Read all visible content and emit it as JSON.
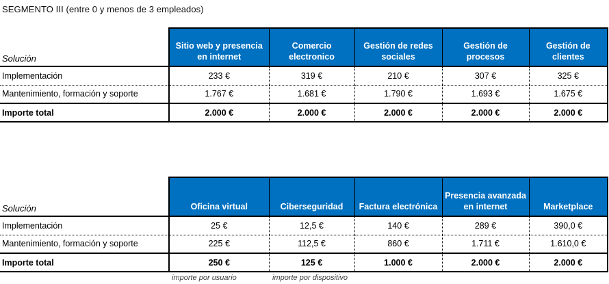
{
  "page": {
    "title": "SEGMENTO III (entre 0 y menos de 3 empleados)"
  },
  "colors": {
    "header_bg": "#0070C0",
    "header_text": "#FFFFFF"
  },
  "tables": [
    {
      "label_header": "Solución",
      "columns": [
        "Sitio web y presencia en internet",
        "Comercio electronico",
        "Gestión de redes sociales",
        "Gestión de procesos",
        "Gestión de clientes"
      ],
      "rows": [
        {
          "label": "Implementación",
          "values": [
            "233 €",
            "319 €",
            "210 €",
            "307 €",
            "325 €"
          ]
        },
        {
          "label": "Mantenimiento, formación y soporte",
          "values": [
            "1.767 €",
            "1.681 €",
            "1.790 €",
            "1.693 €",
            "1.675 €"
          ]
        },
        {
          "label": "Importe total",
          "values": [
            "2.000 €",
            "2.000 €",
            "2.000 €",
            "2.000 €",
            "2.000 €"
          ]
        }
      ],
      "footnotes": []
    },
    {
      "label_header": "Solución",
      "columns": [
        "Oficina virtual",
        "Ciberseguridad",
        "Factura electrónica",
        "Presencia avanzada en internet",
        "Marketplace"
      ],
      "rows": [
        {
          "label": "Implementación",
          "values": [
            "25 €",
            "12,5 €",
            "140 €",
            "289 €",
            "390,0 €"
          ]
        },
        {
          "label": "Mantenimiento, formación y soporte",
          "values": [
            "225 €",
            "112,5 €",
            "860 €",
            "1.711 €",
            "1.610,0 €"
          ]
        },
        {
          "label": "Importe total",
          "values": [
            "250 €",
            "125 €",
            "1.000 €",
            "2.000 €",
            "2.000 €"
          ]
        }
      ],
      "footnotes": [
        "importe por usuario",
        "importe por dispositivo"
      ]
    }
  ]
}
